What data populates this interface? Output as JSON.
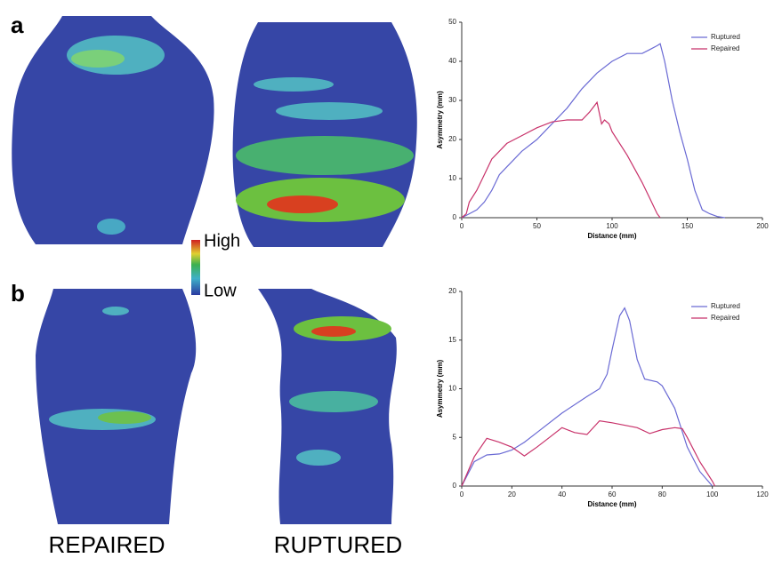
{
  "panel_labels": [
    "a",
    "b"
  ],
  "colorbar": {
    "high": "High",
    "low": "Low"
  },
  "column_labels": [
    "REPAIRED",
    "RUPTURED"
  ],
  "chart_data": [
    {
      "type": "line",
      "x_label": "Distance (mm)",
      "y_label": "Asymmetry (mm)",
      "xlim": [
        0,
        200
      ],
      "xticks": [
        0,
        50,
        100,
        150,
        200
      ],
      "ylim": [
        0,
        50
      ],
      "yticks": [
        0,
        10,
        20,
        30,
        40,
        50
      ],
      "legend": "upper-right",
      "series": [
        {
          "name": "Ruptured",
          "color": "#6a6ad4",
          "x": [
            0,
            5,
            10,
            15,
            20,
            25,
            30,
            40,
            50,
            60,
            70,
            80,
            90,
            100,
            110,
            120,
            125,
            130,
            132,
            135,
            140,
            145,
            150,
            155,
            160,
            165,
            170,
            175
          ],
          "values": [
            0,
            1,
            2,
            4,
            7,
            11,
            13,
            17,
            20,
            24,
            28,
            33,
            37,
            40,
            42,
            42,
            43,
            44,
            44.5,
            40,
            30,
            22,
            15,
            7,
            2,
            1,
            0.3,
            0
          ]
        },
        {
          "name": "Repaired",
          "color": "#c8326a",
          "x": [
            0,
            3,
            5,
            10,
            15,
            20,
            25,
            30,
            40,
            50,
            60,
            70,
            80,
            85,
            90,
            93,
            95,
            98,
            100,
            110,
            120,
            125,
            130,
            132
          ],
          "values": [
            0,
            1,
            4,
            7,
            11,
            15,
            17,
            19,
            21,
            23,
            24.5,
            25,
            25,
            27,
            29.5,
            24,
            25,
            24,
            22,
            16,
            9,
            5,
            1,
            0
          ]
        }
      ]
    },
    {
      "type": "line",
      "x_label": "Distance (mm)",
      "y_label": "Asymmetry (mm)",
      "xlim": [
        0,
        120
      ],
      "xticks": [
        0,
        20,
        40,
        60,
        80,
        100,
        120
      ],
      "ylim": [
        0,
        20
      ],
      "yticks": [
        0,
        5,
        10,
        15,
        20
      ],
      "legend": "upper-right",
      "series": [
        {
          "name": "Ruptured",
          "color": "#6a6ad4",
          "x": [
            0,
            5,
            10,
            15,
            20,
            25,
            30,
            40,
            50,
            55,
            58,
            60,
            63,
            65,
            67,
            70,
            73,
            78,
            80,
            85,
            90,
            95,
            100
          ],
          "values": [
            0,
            2.5,
            3.2,
            3.3,
            3.7,
            4.5,
            5.5,
            7.5,
            9.2,
            10,
            11.5,
            14,
            17.5,
            18.3,
            17,
            13,
            11,
            10.7,
            10.3,
            8,
            4,
            1.5,
            0
          ]
        },
        {
          "name": "Repaired",
          "color": "#c8326a",
          "x": [
            0,
            5,
            10,
            15,
            20,
            25,
            30,
            35,
            40,
            45,
            50,
            55,
            60,
            70,
            75,
            80,
            85,
            88,
            90,
            95,
            100,
            101
          ],
          "values": [
            0,
            3,
            4.9,
            4.5,
            4,
            3.1,
            4,
            5,
            6,
            5.5,
            5.3,
            6.7,
            6.5,
            6,
            5.4,
            5.8,
            6,
            5.9,
            5,
            2.5,
            0.5,
            0
          ]
        }
      ]
    }
  ]
}
